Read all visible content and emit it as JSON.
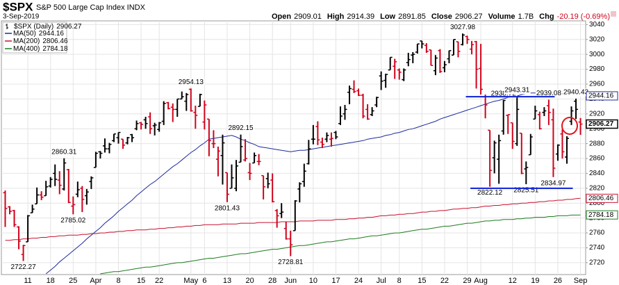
{
  "chart_data": {
    "type": "ohlc",
    "title": "$SPX",
    "subtitle": "S&P 500 Large Cap Index INDX",
    "date": "3-Sep-2019",
    "stats": [
      {
        "label": "Open",
        "value": 2909.01
      },
      {
        "label": "High",
        "value": 2914.39
      },
      {
        "label": "Low",
        "value": 2891.85
      },
      {
        "label": "Close",
        "value": 2906.27
      },
      {
        "label": "Volume",
        "value": "1.7B"
      },
      {
        "label": "Chg",
        "value": "-20.19 (-0.69%)"
      }
    ],
    "price_name": "$SPX (Daily)",
    "up_color": "#000000",
    "down_color": "#d0021b",
    "grid": true,
    "ylim": [
      2704,
      3045
    ],
    "yticks": [
      2720,
      2740,
      2760,
      2780,
      2800,
      2820,
      2840,
      2860,
      2880,
      2900,
      2920,
      2940,
      2960,
      2980,
      3000,
      3020,
      3040
    ],
    "categories": [
      null,
      null,
      null,
      null,
      null,
      "11",
      null,
      null,
      null,
      null,
      "18",
      null,
      null,
      null,
      null,
      "25",
      null,
      null,
      null,
      null,
      "Apr",
      null,
      null,
      null,
      null,
      "8",
      null,
      null,
      null,
      null,
      "15",
      null,
      null,
      null,
      "22",
      null,
      null,
      null,
      null,
      null,
      null,
      "May",
      null,
      null,
      "6",
      null,
      null,
      null,
      null,
      "13",
      null,
      null,
      null,
      null,
      "20",
      null,
      null,
      null,
      null,
      "28",
      null,
      null,
      null,
      "Jun",
      null,
      null,
      null,
      null,
      "10",
      null,
      null,
      null,
      null,
      "17",
      null,
      null,
      null,
      null,
      "24",
      null,
      null,
      null,
      null,
      "Jul",
      null,
      null,
      null,
      "8",
      null,
      null,
      null,
      null,
      "15",
      null,
      null,
      null,
      null,
      "22",
      null,
      null,
      null,
      null,
      "29",
      null,
      null,
      "Aug",
      null,
      null,
      null,
      null,
      null,
      null,
      "12",
      null,
      null,
      null,
      null,
      "19",
      null,
      null,
      null,
      null,
      "26",
      null,
      null,
      null,
      null,
      "Sep"
    ],
    "open": [
      2814,
      2795,
      2790,
      2768,
      2731,
      2748,
      2787,
      2799,
      2811,
      2810,
      2823,
      2840,
      2831,
      2819,
      2845,
      2796,
      2812,
      2820,
      2810,
      2829,
      2848,
      2869,
      2877,
      2873,
      2884,
      2888,
      2886,
      2881,
      2892,
      2900,
      2908,
      2912,
      2916,
      2904,
      2899,
      2910,
      2935,
      2929,
      2926,
      2940,
      2937,
      2953,
      2922,
      2930,
      2909,
      2913,
      2880,
      2859,
      2864,
      2841,
      2820,
      2820,
      2855,
      2858,
      2841,
      2854,
      2856,
      2837,
      2833,
      2831,
      2790,
      2786,
      2766,
      2752,
      2763,
      2819,
      2829,
      2853,
      2886,
      2903,
      2882,
      2886,
      2886,
      2895,
      2907,
      2920,
      2949,
      2953,
      2951,
      2945,
      2926,
      2919,
      2932,
      2971,
      2965,
      2979,
      2984,
      2979,
      2966,
      2989,
      2999,
      3003,
      3018,
      3012,
      3006,
      2978,
      3005,
      2982,
      2994,
      2999,
      3017,
      3013,
      3024,
      3007,
      3017,
      2981,
      2943,
      2898,
      2861,
      2859,
      2897,
      2918,
      2908,
      2880,
      2894,
      2846,
      2865,
      2913,
      2919,
      2922,
      2931,
      2912,
      2866,
      2893,
      2862,
      2910,
      2937,
      2909.01
    ],
    "high": [
      2817,
      2796,
      2791,
      2769,
      2744,
      2784,
      2798,
      2821,
      2816,
      2830,
      2835,
      2852,
      2843,
      2860.31,
      2846,
      2809,
      2829,
      2823,
      2819,
      2836,
      2869,
      2870,
      2887,
      2881,
      2893,
      2895,
      2886,
      2889,
      2893,
      2911,
      2909,
      2916,
      2922,
      2908,
      2909,
      2937,
      2936,
      2934,
      2940,
      2950,
      2948,
      2954.13,
      2931,
      2947,
      2938,
      2913,
      2898,
      2876,
      2892,
      2841,
      2852,
      2858,
      2892.15,
      2886,
      2854,
      2868,
      2866,
      2837,
      2841,
      2840,
      2792,
      2800,
      2775,
      2763,
      2804,
      2828,
      2853,
      2885,
      2905,
      2910,
      2888,
      2895,
      2895,
      2897,
      2930,
      2932,
      2958,
      2965,
      2954,
      2947,
      2933,
      2929,
      2943,
      2977,
      2974,
      2996,
      2994,
      2981,
      2981,
      3002,
      3003,
      3014,
      3018,
      3015,
      3006,
      2999,
      3007,
      2991,
      3005,
      3020,
      3017,
      3027.98,
      3025,
      3018,
      3018,
      3014,
      2946,
      2898,
      2884,
      2892,
      2938.72,
      2919,
      2908,
      2943.31,
      2894,
      2856,
      2893,
      2931,
      2923,
      2929,
      2939.08,
      2927,
      2879,
      2899,
      2890,
      2930,
      2940.43,
      2914.39
    ],
    "low": [
      2768,
      2785,
      2768,
      2738,
      2722.27,
      2748,
      2787,
      2799,
      2804,
      2810,
      2821,
      2823,
      2812,
      2817,
      2800,
      2785.02,
      2808,
      2788,
      2798,
      2819,
      2848,
      2860,
      2868,
      2867,
      2882,
      2880,
      2873,
      2879,
      2882,
      2898,
      2899,
      2900,
      2893,
      2891,
      2896,
      2905,
      2926,
      2909,
      2916,
      2940,
      2924,
      2923,
      2900,
      2930,
      2899,
      2863,
      2874,
      2836,
      2825,
      2801.43,
      2820,
      2816,
      2855,
      2856,
      2831,
      2854,
      2851,
      2805,
      2820,
      2801,
      2767,
      2780,
      2751,
      2728.81,
      2763,
      2801,
      2822,
      2852,
      2879,
      2878,
      2874,
      2882,
      2876,
      2886,
      2905,
      2912,
      2933,
      2948,
      2944,
      2914,
      2912,
      2917,
      2929,
      2952,
      2955,
      2979,
      2967,
      2966,
      2964,
      2984,
      2988,
      3001,
      3008,
      3002,
      2985,
      2972,
      2975,
      2976,
      2988,
      2999,
      2996,
      3012,
      3014,
      3000,
      2954,
      2946,
      2914,
      2822.12,
      2840,
      2826,
      2892,
      2893,
      2873,
      2877,
      2839,
      2825.51,
      2865,
      2913,
      2899,
      2917,
      2905,
      2834.97,
      2857,
      2860,
      2853,
      2905,
      2913,
      2891.85
    ],
    "close": [
      2793,
      2789,
      2771,
      2749,
      2743,
      2783,
      2792,
      2811,
      2808,
      2822,
      2832,
      2832,
      2824,
      2854,
      2801,
      2798,
      2818,
      2805,
      2815,
      2834,
      2867,
      2867,
      2873,
      2879,
      2893,
      2895,
      2878,
      2888,
      2888,
      2907,
      2906,
      2907,
      2900,
      2905,
      2908,
      2934,
      2927,
      2926,
      2940,
      2943,
      2946,
      2924,
      2918,
      2946,
      2932,
      2884,
      2880,
      2870,
      2881,
      2812,
      2834,
      2850,
      2876,
      2860,
      2840,
      2864,
      2856,
      2822,
      2826,
      2802,
      2783,
      2788,
      2752,
      2744,
      2803,
      2826,
      2843,
      2873,
      2886,
      2885,
      2879,
      2891,
      2887,
      2889,
      2917,
      2926,
      2954,
      2950,
      2945,
      2917,
      2913,
      2924,
      2942,
      2964,
      2973,
      2996,
      2990,
      2976,
      2979,
      2993,
      3000,
      3014,
      3014,
      3004,
      2985,
      2995,
      2977,
      2986,
      3005,
      3020,
      3004,
      3026,
      3020,
      3013,
      2980,
      2953,
      2932,
      2844,
      2881,
      2884,
      2938,
      2919,
      2883,
      2926,
      2840,
      2848,
      2889,
      2924,
      2900,
      2924,
      2922,
      2847,
      2878,
      2869,
      2887,
      2924,
      2926,
      2906.27
    ],
    "series": [
      {
        "name": "MA(50)",
        "color": "#1c2a9c",
        "values": [
          null,
          null,
          null,
          null,
          null,
          null,
          null,
          null,
          null,
          2705,
          2710,
          2715,
          2721,
          2726,
          2731,
          2736,
          2741,
          2746,
          2752,
          2757,
          2762,
          2767,
          2773,
          2778,
          2783,
          2789,
          2794,
          2799,
          2804,
          2810,
          2815,
          2820,
          2825,
          2829,
          2834,
          2839,
          2844,
          2849,
          2853,
          2858,
          2863,
          2868,
          2872,
          2877,
          2881,
          2886,
          2887,
          2888,
          2889,
          2890,
          2891,
          2889,
          2886,
          2884,
          2881,
          2879,
          2876,
          2875,
          2874,
          2873,
          2872,
          2871,
          2870,
          2869,
          2870,
          2871,
          2871,
          2872,
          2873,
          2874,
          2875,
          2876,
          2877,
          2878,
          2879,
          2880,
          2881,
          2882,
          2883,
          2884,
          2886,
          2887,
          2888,
          2889,
          2891,
          2892,
          2894,
          2895,
          2897,
          2899,
          2900,
          2902,
          2904,
          2906,
          2908,
          2910,
          2913,
          2915,
          2917,
          2919,
          2921,
          2923,
          2925,
          2927,
          2929,
          2931,
          2933,
          2935,
          2937,
          2938,
          2940,
          2942,
          2943,
          2944,
          2946,
          2947,
          2948,
          2948,
          2949,
          2949,
          2950,
          2949,
          2948,
          2947,
          2947,
          2946,
          2945,
          2944.16
        ]
      },
      {
        "name": "MA(200)",
        "color": "#c8102e",
        "values": [
          2750,
          2750,
          2751,
          2751,
          2752,
          2752,
          2753,
          2753,
          2754,
          2754,
          2755,
          2755,
          2756,
          2756,
          2757,
          2757,
          2757,
          2758,
          2758,
          2759,
          2759,
          2760,
          2760,
          2761,
          2761,
          2762,
          2762,
          2763,
          2763,
          2764,
          2764,
          2764,
          2765,
          2765,
          2766,
          2766,
          2767,
          2767,
          2768,
          2768,
          2769,
          2769,
          2770,
          2770,
          2771,
          2771,
          2771,
          2771,
          2772,
          2772,
          2772,
          2772,
          2773,
          2773,
          2773,
          2773,
          2774,
          2774,
          2774,
          2774,
          2774,
          2775,
          2775,
          2775,
          2775,
          2776,
          2776,
          2776,
          2776,
          2777,
          2777,
          2777,
          2777,
          2778,
          2778,
          2778,
          2779,
          2779,
          2780,
          2780,
          2781,
          2781,
          2782,
          2783,
          2783,
          2784,
          2784,
          2785,
          2785,
          2786,
          2786,
          2787,
          2788,
          2788,
          2789,
          2789,
          2790,
          2790,
          2791,
          2792,
          2792,
          2793,
          2793,
          2794,
          2794,
          2795,
          2796,
          2796,
          2797,
          2797,
          2798,
          2798,
          2799,
          2799,
          2800,
          2800,
          2801,
          2801,
          2802,
          2802,
          2803,
          2803,
          2804,
          2804,
          2805,
          2805,
          2806,
          2806.46
        ]
      },
      {
        "name": "MA(400)",
        "color": "#1e7a1e",
        "values": [
          null,
          null,
          null,
          null,
          null,
          null,
          null,
          null,
          null,
          null,
          null,
          null,
          null,
          null,
          null,
          null,
          null,
          null,
          null,
          null,
          null,
          2705,
          2706,
          2707,
          2708,
          2708,
          2709,
          2710,
          2711,
          2712,
          2713,
          2714,
          2714,
          2715,
          2716,
          2717,
          2718,
          2719,
          2720,
          2720,
          2721,
          2722,
          2723,
          2724,
          2725,
          2726,
          2726,
          2727,
          2728,
          2729,
          2730,
          2731,
          2732,
          2732,
          2733,
          2734,
          2735,
          2736,
          2737,
          2738,
          2738,
          2739,
          2740,
          2741,
          2742,
          2743,
          2743,
          2744,
          2745,
          2746,
          2747,
          2748,
          2748,
          2749,
          2750,
          2751,
          2752,
          2752,
          2753,
          2754,
          2755,
          2756,
          2756,
          2757,
          2758,
          2759,
          2760,
          2760,
          2761,
          2762,
          2763,
          2764,
          2765,
          2765,
          2766,
          2767,
          2768,
          2769,
          2769,
          2770,
          2771,
          2772,
          2773,
          2773,
          2774,
          2775,
          2776,
          2776,
          2777,
          2777,
          2778,
          2778,
          2778,
          2779,
          2779,
          2780,
          2780,
          2781,
          2781,
          2781,
          2782,
          2782,
          2783,
          2783,
          2783,
          2784,
          2784,
          2784.18
        ]
      }
    ],
    "trend_lines": [
      {
        "value": 2943,
        "start": 102,
        "end": 121,
        "color": "#0a1fd6"
      },
      {
        "value": 2820,
        "start": 103,
        "end": 125,
        "color": "#0a1fd6"
      }
    ]
  }
}
